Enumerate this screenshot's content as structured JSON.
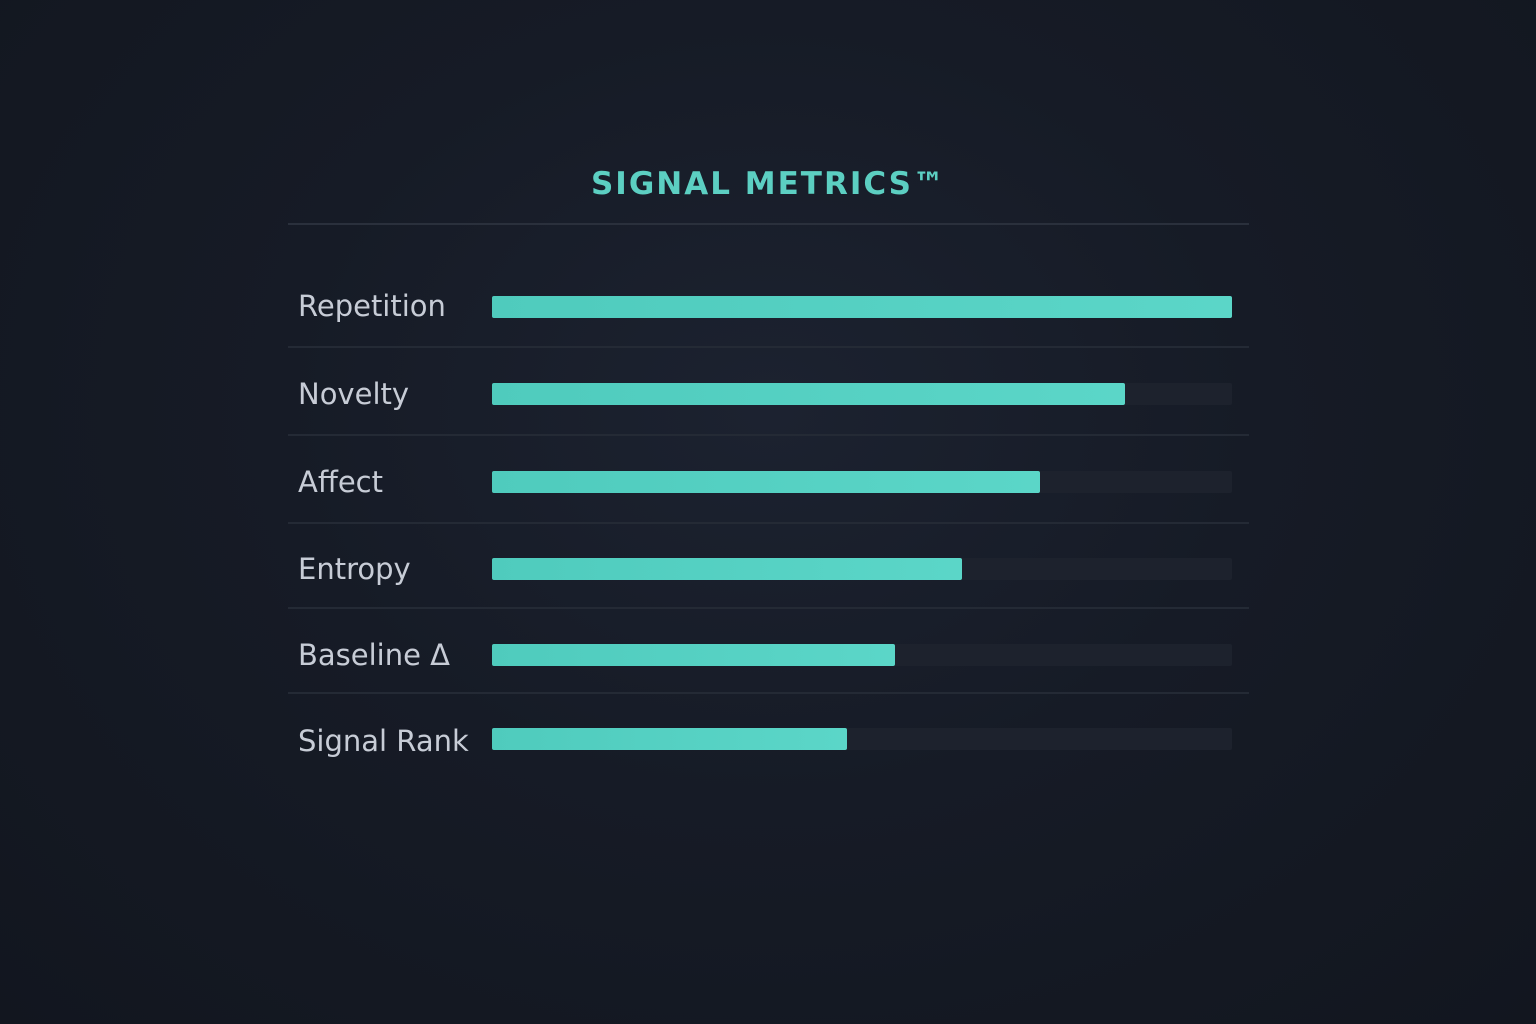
{
  "chart_data": {
    "type": "bar",
    "orientation": "horizontal",
    "title": "SIGNAL METRICS™",
    "categories": [
      "Repetition",
      "Novelty",
      "Affect",
      "Entropy",
      "Baseline Δ",
      "Signal Rank"
    ],
    "values": [
      1.0,
      0.855,
      0.74,
      0.635,
      0.545,
      0.48
    ],
    "xlim": [
      0,
      1
    ],
    "grid": false,
    "legend": "none"
  },
  "colors": {
    "accent": "#5ccfc2",
    "bar": "#55d1c3",
    "track": "#1d222d",
    "background": "#161b26",
    "label": "#c7ccd6"
  }
}
